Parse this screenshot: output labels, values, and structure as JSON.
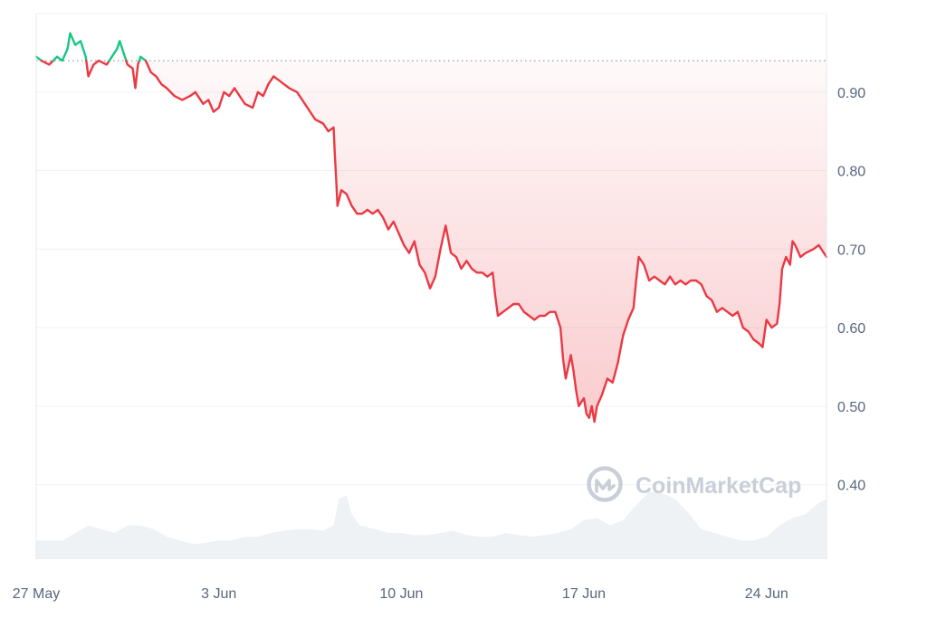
{
  "chart_data": {
    "type": "line",
    "title": "",
    "xlabel": "",
    "ylabel": "",
    "ylim": [
      0.305,
      1.0
    ],
    "grid": true,
    "reference_price": 0.94,
    "x_ticks": [
      "27 May",
      "3 Jun",
      "10 Jun",
      "17 Jun",
      "24 Jun"
    ],
    "y_ticks": [
      0.4,
      0.5,
      0.6,
      0.7,
      0.8,
      0.9
    ],
    "y_tick_labels": [
      "0.40",
      "0.50",
      "0.60",
      "0.70",
      "0.80",
      "0.90"
    ],
    "x_range_days": [
      0,
      30.3
    ],
    "series": [
      {
        "points": [
          [
            0.0,
            0.945
          ],
          [
            0.2,
            0.94
          ],
          [
            0.5,
            0.935
          ],
          [
            0.8,
            0.945
          ],
          [
            1.0,
            0.94
          ],
          [
            1.2,
            0.955
          ],
          [
            1.3,
            0.975
          ],
          [
            1.5,
            0.96
          ],
          [
            1.7,
            0.965
          ],
          [
            1.9,
            0.945
          ],
          [
            2.0,
            0.92
          ],
          [
            2.2,
            0.935
          ],
          [
            2.4,
            0.94
          ],
          [
            2.7,
            0.935
          ],
          [
            2.9,
            0.945
          ],
          [
            3.1,
            0.955
          ],
          [
            3.2,
            0.965
          ],
          [
            3.35,
            0.95
          ],
          [
            3.5,
            0.935
          ],
          [
            3.7,
            0.93
          ],
          [
            3.8,
            0.905
          ],
          [
            3.9,
            0.935
          ],
          [
            4.0,
            0.945
          ],
          [
            4.2,
            0.94
          ],
          [
            4.4,
            0.925
          ],
          [
            4.6,
            0.92
          ],
          [
            4.8,
            0.91
          ],
          [
            5.0,
            0.905
          ],
          [
            5.3,
            0.895
          ],
          [
            5.6,
            0.89
          ],
          [
            5.9,
            0.895
          ],
          [
            6.1,
            0.9
          ],
          [
            6.4,
            0.885
          ],
          [
            6.6,
            0.89
          ],
          [
            6.8,
            0.875
          ],
          [
            7.0,
            0.88
          ],
          [
            7.2,
            0.9
          ],
          [
            7.4,
            0.895
          ],
          [
            7.6,
            0.905
          ],
          [
            7.8,
            0.895
          ],
          [
            8.0,
            0.885
          ],
          [
            8.3,
            0.88
          ],
          [
            8.5,
            0.9
          ],
          [
            8.7,
            0.895
          ],
          [
            8.9,
            0.91
          ],
          [
            9.1,
            0.92
          ],
          [
            9.3,
            0.915
          ],
          [
            9.5,
            0.91
          ],
          [
            9.7,
            0.905
          ],
          [
            10.0,
            0.9
          ],
          [
            10.2,
            0.89
          ],
          [
            10.5,
            0.875
          ],
          [
            10.7,
            0.865
          ],
          [
            11.0,
            0.86
          ],
          [
            11.2,
            0.85
          ],
          [
            11.4,
            0.855
          ],
          [
            11.45,
            0.82
          ],
          [
            11.5,
            0.79
          ],
          [
            11.55,
            0.755
          ],
          [
            11.7,
            0.775
          ],
          [
            11.9,
            0.77
          ],
          [
            12.1,
            0.755
          ],
          [
            12.3,
            0.745
          ],
          [
            12.5,
            0.745
          ],
          [
            12.7,
            0.75
          ],
          [
            12.9,
            0.745
          ],
          [
            13.1,
            0.75
          ],
          [
            13.3,
            0.74
          ],
          [
            13.5,
            0.725
          ],
          [
            13.7,
            0.735
          ],
          [
            13.9,
            0.72
          ],
          [
            14.1,
            0.705
          ],
          [
            14.3,
            0.695
          ],
          [
            14.5,
            0.71
          ],
          [
            14.7,
            0.68
          ],
          [
            14.9,
            0.67
          ],
          [
            15.1,
            0.65
          ],
          [
            15.3,
            0.665
          ],
          [
            15.5,
            0.7
          ],
          [
            15.7,
            0.73
          ],
          [
            15.9,
            0.695
          ],
          [
            16.1,
            0.69
          ],
          [
            16.3,
            0.675
          ],
          [
            16.5,
            0.685
          ],
          [
            16.7,
            0.675
          ],
          [
            16.9,
            0.67
          ],
          [
            17.1,
            0.67
          ],
          [
            17.3,
            0.665
          ],
          [
            17.5,
            0.67
          ],
          [
            17.6,
            0.64
          ],
          [
            17.7,
            0.615
          ],
          [
            17.9,
            0.62
          ],
          [
            18.1,
            0.625
          ],
          [
            18.3,
            0.63
          ],
          [
            18.5,
            0.63
          ],
          [
            18.7,
            0.62
          ],
          [
            18.9,
            0.615
          ],
          [
            19.1,
            0.61
          ],
          [
            19.3,
            0.615
          ],
          [
            19.5,
            0.615
          ],
          [
            19.7,
            0.62
          ],
          [
            19.9,
            0.62
          ],
          [
            20.1,
            0.6
          ],
          [
            20.2,
            0.56
          ],
          [
            20.3,
            0.535
          ],
          [
            20.5,
            0.565
          ],
          [
            20.6,
            0.545
          ],
          [
            20.7,
            0.52
          ],
          [
            20.8,
            0.5
          ],
          [
            21.0,
            0.51
          ],
          [
            21.1,
            0.49
          ],
          [
            21.2,
            0.485
          ],
          [
            21.3,
            0.5
          ],
          [
            21.4,
            0.48
          ],
          [
            21.5,
            0.5
          ],
          [
            21.7,
            0.515
          ],
          [
            21.9,
            0.535
          ],
          [
            22.1,
            0.53
          ],
          [
            22.3,
            0.555
          ],
          [
            22.5,
            0.59
          ],
          [
            22.7,
            0.61
          ],
          [
            22.9,
            0.625
          ],
          [
            23.0,
            0.66
          ],
          [
            23.1,
            0.69
          ],
          [
            23.3,
            0.68
          ],
          [
            23.5,
            0.66
          ],
          [
            23.7,
            0.665
          ],
          [
            23.9,
            0.66
          ],
          [
            24.1,
            0.655
          ],
          [
            24.3,
            0.665
          ],
          [
            24.5,
            0.655
          ],
          [
            24.7,
            0.66
          ],
          [
            24.9,
            0.655
          ],
          [
            25.1,
            0.66
          ],
          [
            25.3,
            0.66
          ],
          [
            25.5,
            0.655
          ],
          [
            25.7,
            0.64
          ],
          [
            25.9,
            0.635
          ],
          [
            26.1,
            0.62
          ],
          [
            26.3,
            0.625
          ],
          [
            26.5,
            0.62
          ],
          [
            26.7,
            0.615
          ],
          [
            26.9,
            0.62
          ],
          [
            27.1,
            0.6
          ],
          [
            27.3,
            0.595
          ],
          [
            27.5,
            0.585
          ],
          [
            27.7,
            0.58
          ],
          [
            27.85,
            0.575
          ],
          [
            28.0,
            0.61
          ],
          [
            28.2,
            0.6
          ],
          [
            28.4,
            0.605
          ],
          [
            28.5,
            0.63
          ],
          [
            28.6,
            0.675
          ],
          [
            28.75,
            0.69
          ],
          [
            28.9,
            0.68
          ],
          [
            29.0,
            0.71
          ],
          [
            29.1,
            0.705
          ],
          [
            29.3,
            0.69
          ],
          [
            29.5,
            0.695
          ],
          [
            29.8,
            0.7
          ],
          [
            30.0,
            0.705
          ],
          [
            30.3,
            0.69
          ]
        ]
      }
    ],
    "volume": {
      "range": [
        0,
        1
      ],
      "points": [
        [
          0.0,
          0.25
        ],
        [
          1.0,
          0.25
        ],
        [
          1.5,
          0.35
        ],
        [
          2.0,
          0.45
        ],
        [
          2.5,
          0.4
        ],
        [
          3.0,
          0.35
        ],
        [
          3.5,
          0.45
        ],
        [
          4.0,
          0.45
        ],
        [
          4.5,
          0.4
        ],
        [
          5.0,
          0.3
        ],
        [
          5.5,
          0.25
        ],
        [
          6.0,
          0.2
        ],
        [
          6.5,
          0.22
        ],
        [
          7.0,
          0.25
        ],
        [
          7.5,
          0.25
        ],
        [
          8.0,
          0.3
        ],
        [
          8.5,
          0.3
        ],
        [
          9.0,
          0.35
        ],
        [
          9.5,
          0.38
        ],
        [
          10.0,
          0.4
        ],
        [
          10.5,
          0.4
        ],
        [
          11.0,
          0.38
        ],
        [
          11.4,
          0.45
        ],
        [
          11.6,
          0.8
        ],
        [
          11.9,
          0.85
        ],
        [
          12.1,
          0.6
        ],
        [
          12.4,
          0.45
        ],
        [
          13.0,
          0.4
        ],
        [
          13.5,
          0.35
        ],
        [
          14.0,
          0.35
        ],
        [
          14.5,
          0.32
        ],
        [
          15.0,
          0.32
        ],
        [
          15.5,
          0.35
        ],
        [
          16.0,
          0.38
        ],
        [
          16.5,
          0.32
        ],
        [
          17.0,
          0.3
        ],
        [
          17.5,
          0.3
        ],
        [
          18.0,
          0.35
        ],
        [
          18.5,
          0.32
        ],
        [
          19.0,
          0.3
        ],
        [
          19.5,
          0.32
        ],
        [
          20.0,
          0.35
        ],
        [
          20.5,
          0.4
        ],
        [
          21.0,
          0.52
        ],
        [
          21.5,
          0.55
        ],
        [
          22.0,
          0.45
        ],
        [
          22.5,
          0.52
        ],
        [
          23.0,
          0.72
        ],
        [
          23.5,
          0.9
        ],
        [
          24.0,
          0.88
        ],
        [
          24.5,
          0.8
        ],
        [
          25.0,
          0.62
        ],
        [
          25.5,
          0.4
        ],
        [
          26.0,
          0.35
        ],
        [
          26.5,
          0.3
        ],
        [
          27.0,
          0.25
        ],
        [
          27.5,
          0.25
        ],
        [
          28.0,
          0.3
        ],
        [
          28.5,
          0.45
        ],
        [
          29.0,
          0.55
        ],
        [
          29.5,
          0.6
        ],
        [
          30.0,
          0.75
        ],
        [
          30.3,
          0.8
        ]
      ]
    },
    "colors": {
      "up": "#16c784",
      "down": "#ea3943",
      "fill_down": "#ea3943",
      "volume": "#eff2f5",
      "grid": "#eff2f5",
      "reference": "#8a919e",
      "axis_text": "#58667e"
    }
  },
  "watermark": {
    "text": "CoinMarketCap",
    "icon": "coinmarketcap-logo-icon"
  }
}
